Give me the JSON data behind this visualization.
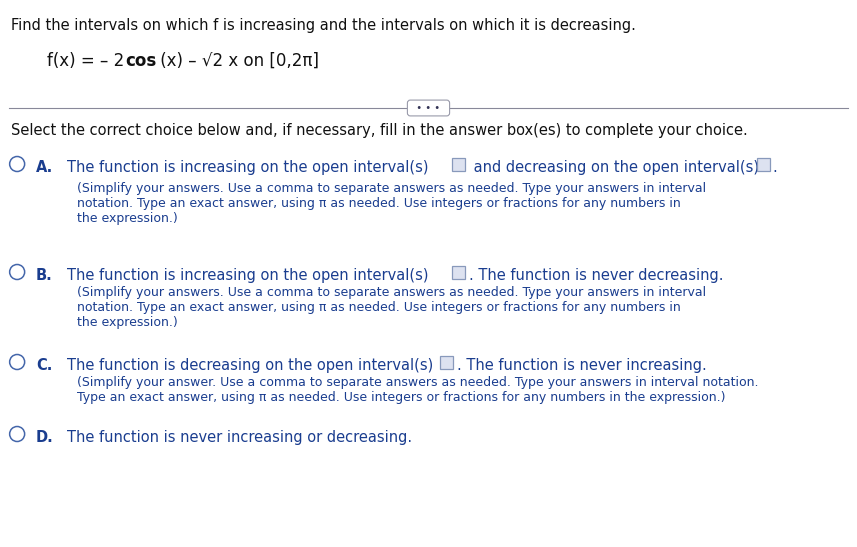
{
  "background_color": "#ffffff",
  "text_color_dark": "#111111",
  "text_color_blue": "#1a3d8f",
  "title_line": "Find the intervals on which f is increasing and the intervals on which it is decreasing.",
  "select_line": "Select the correct choice below and, if necessary, fill in the answer box(es) to complete your choice.",
  "option_A_main": "The function is increasing on the open interval(s)",
  "option_A_mid": " and decreasing on the open interval(s)",
  "option_A_sub1": "(Simplify your answers. Use a comma to separate answers as needed. Type your answers in interval",
  "option_A_sub2": "notation. Type an exact answer, using π as needed. Use integers or fractions for any numbers in",
  "option_A_sub3": "the expression.)",
  "option_B_main": "The function is increasing on the open interval(s)",
  "option_B_mid": ". The function is never decreasing.",
  "option_B_sub1": "(Simplify your answers. Use a comma to separate answers as needed. Type your answers in interval",
  "option_B_sub2": "notation. Type an exact answer, using π as needed. Use integers or fractions for any numbers in",
  "option_B_sub3": "the expression.)",
  "option_C_main": "The function is decreasing on the open interval(s)",
  "option_C_mid": ". The function is never increasing.",
  "option_C_sub1": "(Simplify your answer. Use a comma to separate answers as needed. Type your answers in interval notation.",
  "option_C_sub2": "Type an exact answer, using π as needed. Use integers or fractions for any numbers in the expression.)",
  "option_D_main": "The function is never increasing or decreasing.",
  "fig_width": 8.57,
  "fig_height": 5.47,
  "dpi": 100
}
